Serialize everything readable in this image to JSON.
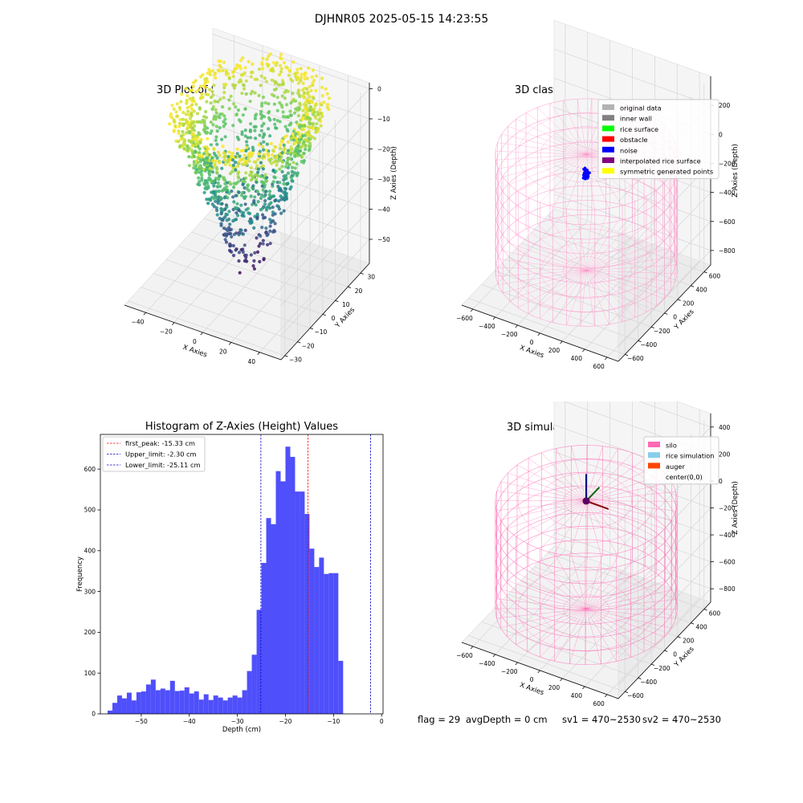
{
  "suptitle": "DJHNR05 2025-05-15 14:23:55",
  "footer": {
    "flag": "flag = 29",
    "avg_depth": "avgDepth = 0 cm",
    "sv1": "sv1 = 470~2530",
    "sv2": "sv2 = 470~2530"
  },
  "chart_data": [
    {
      "type": "scatter",
      "projection": "3d",
      "title": "3D Plot of Silo Interior(row data)",
      "xlabel": "X Axies",
      "ylabel": "Y Axies",
      "zlabel": "Z Axies (Depth)",
      "xticks": [
        -40,
        -20,
        0,
        20,
        40
      ],
      "yticks": [
        -30,
        -20,
        -10,
        0,
        10,
        20,
        30
      ],
      "zticks": [
        0,
        -10,
        -20,
        -30,
        -40,
        -50
      ],
      "xlim": [
        -55,
        55
      ],
      "ylim": [
        -33,
        37
      ],
      "zlim": [
        -58,
        2
      ],
      "colormap": "viridis (by depth)"
    },
    {
      "type": "scatter",
      "projection": "3d",
      "title": "3D classify of Silo Interior",
      "xlabel": "X Axies",
      "ylabel": "Y Axies",
      "zlabel": "Z Axies (Depth)",
      "xticks": [
        -600,
        -400,
        -200,
        0,
        200,
        400,
        600
      ],
      "yticks": [
        -600,
        -400,
        -200,
        0,
        200,
        400,
        600
      ],
      "zticks": [
        200,
        0,
        -200,
        -400,
        -600,
        -800
      ],
      "xlim": [
        -700,
        700
      ],
      "ylim": [
        -700,
        700
      ],
      "zlim": [
        -900,
        400
      ],
      "silo": {
        "radius": 700,
        "top": 0,
        "bottom": -800
      },
      "legend": [
        {
          "label": "original data",
          "color": "#b3b3b3"
        },
        {
          "label": "inner wall",
          "color": "#808080"
        },
        {
          "label": "rice surface",
          "color": "#00ff00"
        },
        {
          "label": "obstacle",
          "color": "#ff0000"
        },
        {
          "label": "noise",
          "color": "#0000ff"
        },
        {
          "label": "interpolated rice surface",
          "color": "#800080"
        },
        {
          "label": "symmetric generated points",
          "color": "#ffff00"
        }
      ]
    },
    {
      "type": "bar",
      "title": "Histogram of Z-Axies (Height) Values",
      "xlabel": "Depth (cm)",
      "ylabel": "Frequency",
      "xlim": [
        -58.5,
        0.3
      ],
      "ylim": [
        0,
        685
      ],
      "xticks": [
        -50,
        -40,
        -30,
        -20,
        -10,
        0
      ],
      "yticks": [
        0,
        100,
        200,
        300,
        400,
        500,
        600
      ],
      "bin_start": -57.0,
      "bin_width": 1.0,
      "values": [
        8,
        27,
        45,
        38,
        52,
        33,
        53,
        55,
        72,
        84,
        58,
        62,
        58,
        81,
        56,
        57,
        65,
        50,
        55,
        35,
        48,
        34,
        45,
        40,
        33,
        40,
        45,
        40,
        58,
        105,
        145,
        255,
        370,
        480,
        465,
        595,
        570,
        655,
        630,
        545,
        545,
        490,
        405,
        360,
        383,
        343,
        345,
        345,
        130
      ],
      "bar_color": "#4b4bfb",
      "lines": [
        {
          "label": "first_peak: -15.33 cm",
          "x": -15.33,
          "color": "#ff0000"
        },
        {
          "label": "Upper_limit: -2.30 cm",
          "x": -2.3,
          "color": "#0000c8"
        },
        {
          "label": "Lower_limit: -25.11 cm",
          "x": -25.11,
          "color": "#0000c8"
        }
      ]
    },
    {
      "type": "scatter",
      "projection": "3d",
      "title": "3D simulation of Silo Interior",
      "xlabel": "X Axies",
      "ylabel": "Y Axies",
      "zlabel": "Z Axies (Depth)",
      "xticks": [
        -600,
        -400,
        -200,
        0,
        200,
        400,
        600
      ],
      "yticks": [
        -600,
        -400,
        -200,
        0,
        200,
        400,
        600
      ],
      "zticks": [
        400,
        200,
        0,
        -200,
        -400,
        -600,
        -800
      ],
      "xlim": [
        -700,
        700
      ],
      "ylim": [
        -700,
        700
      ],
      "zlim": [
        -900,
        500
      ],
      "silo": {
        "radius": 700,
        "top": 0,
        "bottom": -800
      },
      "legend": [
        {
          "label": "silo",
          "color": "#ff69b4"
        },
        {
          "label": "rice simulation",
          "color": "#87ceeb"
        },
        {
          "label": "auger",
          "color": "#ff4500"
        },
        {
          "label": "center(0,0)",
          "color": ""
        }
      ]
    }
  ]
}
